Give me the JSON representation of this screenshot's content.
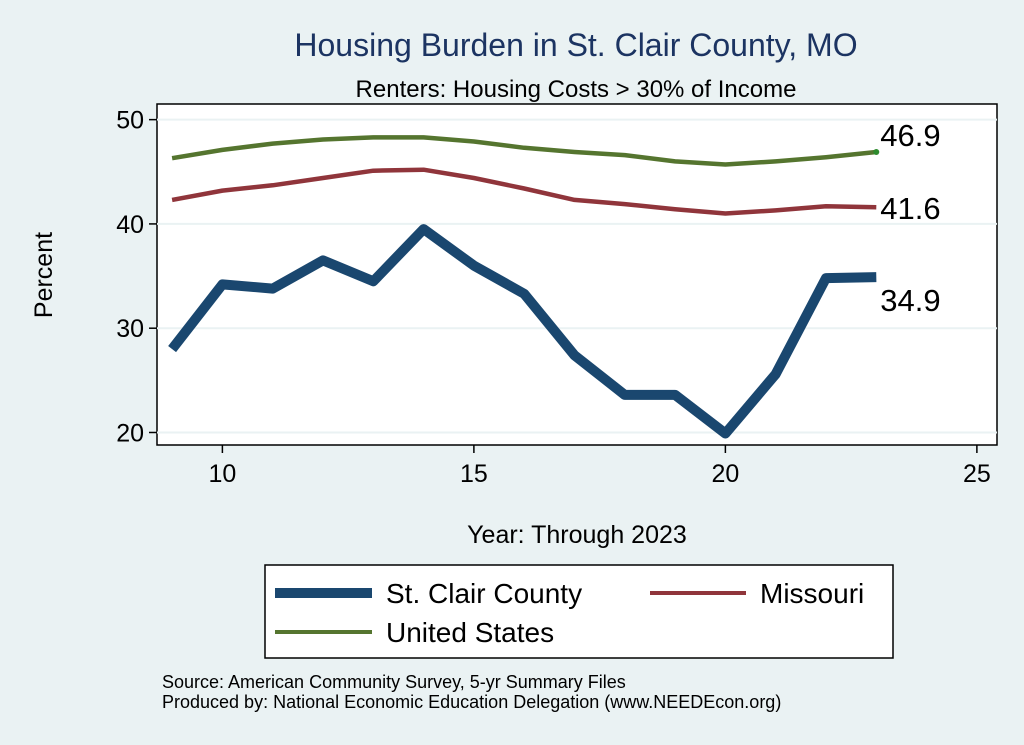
{
  "chart_data": {
    "type": "line",
    "title": "Housing Burden in St. Clair County, MO",
    "subtitle": "Renters: Housing Costs > 30% of Income",
    "xlabel": "Year: Through 2023",
    "ylabel": "Percent",
    "xlim": [
      8.7,
      25.4
    ],
    "ylim": [
      18.8,
      51.5
    ],
    "x_ticks": [
      10,
      15,
      20,
      25
    ],
    "y_ticks": [
      20,
      30,
      40,
      50
    ],
    "x": [
      9,
      10,
      11,
      12,
      13,
      14,
      15,
      16,
      17,
      18,
      19,
      20,
      21,
      22,
      23
    ],
    "series": [
      {
        "name": "St. Clair County",
        "color": "#1a476f",
        "values": [
          28.0,
          34.2,
          33.8,
          36.5,
          34.5,
          39.5,
          36.0,
          33.3,
          27.4,
          23.6,
          23.6,
          19.9,
          25.6,
          34.8,
          34.9
        ],
        "end_label": "34.9"
      },
      {
        "name": "Missouri",
        "color": "#90353b",
        "values": [
          42.3,
          43.2,
          43.7,
          44.4,
          45.1,
          45.2,
          44.4,
          43.4,
          42.3,
          41.9,
          41.4,
          41.0,
          41.3,
          41.7,
          41.6
        ],
        "end_label": "41.6"
      },
      {
        "name": "United States",
        "color": "#55752f",
        "values": [
          46.3,
          47.1,
          47.7,
          48.1,
          48.3,
          48.3,
          47.9,
          47.3,
          46.9,
          46.6,
          46.0,
          45.7,
          46.0,
          46.4,
          46.9
        ],
        "end_label": "46.9"
      }
    ],
    "legend_position": "bottom",
    "source_lines": [
      "Source: American Community Survey, 5-yr Summary Files",
      "Produced by: National Economic Education Delegation (www.NEEDEcon.org)"
    ]
  }
}
